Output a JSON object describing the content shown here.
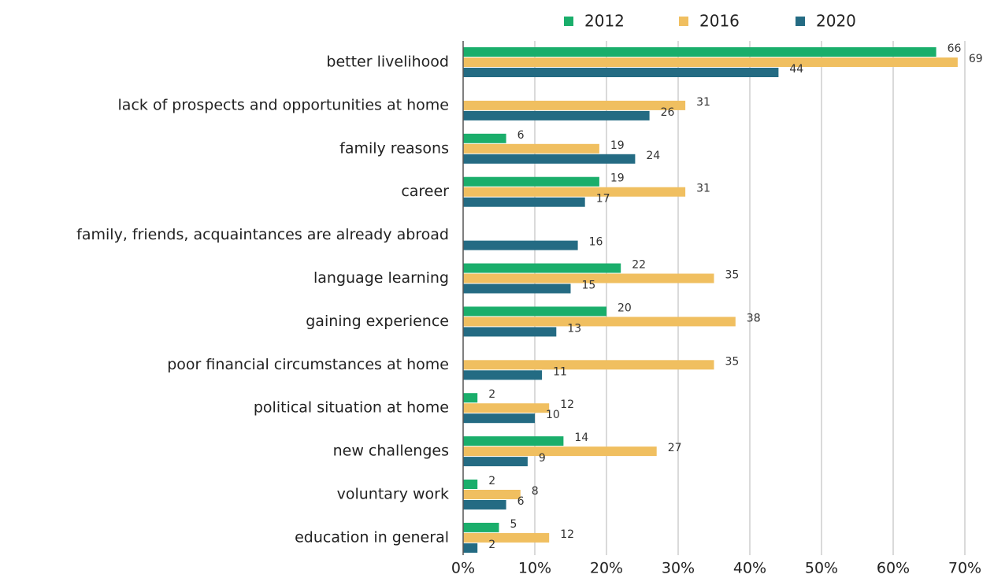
{
  "chart_data": {
    "type": "bar",
    "orientation": "horizontal",
    "categories": [
      "better livelihood",
      "lack of prospects and opportunities at home",
      "family reasons",
      "career",
      "family, friends, acquaintances are already abroad",
      "language learning",
      "gaining experience",
      "poor financial circumstances at home",
      "political situation at home",
      "new challenges",
      "voluntary work",
      "education in general"
    ],
    "series": [
      {
        "name": "2012",
        "color": "#1aae6b",
        "values": [
          66,
          null,
          6,
          19,
          null,
          22,
          20,
          null,
          2,
          14,
          2,
          5
        ]
      },
      {
        "name": "2016",
        "color": "#f0bf60",
        "values": [
          69,
          31,
          19,
          31,
          null,
          35,
          38,
          35,
          12,
          27,
          8,
          12
        ]
      },
      {
        "name": "2020",
        "color": "#246b83",
        "values": [
          44,
          26,
          24,
          17,
          16,
          15,
          13,
          11,
          10,
          9,
          6,
          2
        ]
      }
    ],
    "xlim": [
      0,
      70
    ],
    "xticks": [
      {
        "value": 0,
        "label": "0%"
      },
      {
        "value": 10,
        "label": "10%"
      },
      {
        "value": 20,
        "label": "20%"
      },
      {
        "value": 30,
        "label": "30%"
      },
      {
        "value": 40,
        "label": "40%"
      },
      {
        "value": 50,
        "label": "50%"
      },
      {
        "value": 60,
        "label": "60%"
      },
      {
        "value": 70,
        "label": "70%"
      }
    ],
    "grid": true,
    "legend": "top"
  }
}
